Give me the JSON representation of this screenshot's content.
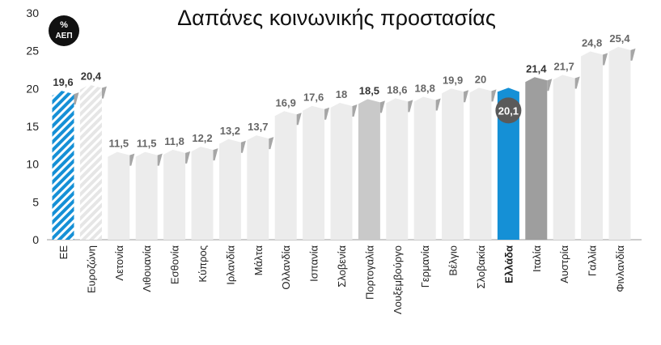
{
  "chart_data": {
    "type": "bar",
    "title": "Δαπάνες κοινωνικής προστασίας",
    "unit_badge": {
      "line1": "%",
      "line2": "ΑΕΠ"
    },
    "ylim": [
      0,
      30
    ],
    "yticks": [
      0,
      5,
      10,
      15,
      20,
      25,
      30
    ],
    "grid": false,
    "categories": [
      "ΕΕ",
      "Ευροζώνη",
      "Λετονία",
      "Λιθουανία",
      "Εσθονία",
      "Κύπρος",
      "Ιρλανδία",
      "Μάλτα",
      "Ολλανδία",
      "Ισπανία",
      "Σλοβενία",
      "Πορτογαλία",
      "Λουξεμβούργο",
      "Γερμανία",
      "Βέλγιο",
      "Σλοβακία",
      "Ελλάδα",
      "Ιταλία",
      "Αυστρία",
      "Γαλλία",
      "Φινλανδία"
    ],
    "values": [
      19.6,
      20.4,
      11.5,
      11.5,
      11.8,
      12.2,
      13.2,
      13.7,
      16.9,
      17.6,
      18,
      18.5,
      18.6,
      18.8,
      19.9,
      20,
      20.1,
      21.4,
      21.7,
      24.8,
      25.4
    ],
    "value_labels": [
      "19,6",
      "20,4",
      "11,5",
      "11,5",
      "11,8",
      "12,2",
      "13,2",
      "13,7",
      "16,9",
      "17,6",
      "18",
      "18,5",
      "18,6",
      "18,8",
      "19,9",
      "20",
      "20,1",
      "21,4",
      "21,7",
      "24,8",
      "25,4"
    ],
    "styles": [
      "hatch-blue",
      "hatch-light",
      "plain",
      "plain",
      "plain",
      "plain",
      "plain",
      "plain",
      "plain",
      "plain",
      "plain",
      "mid-gray",
      "plain",
      "plain",
      "plain",
      "plain",
      "highlight",
      "dark-gray",
      "plain",
      "plain",
      "plain"
    ],
    "colors": {
      "blue": "#1590d6",
      "plain": "#ececec",
      "mid_gray": "#c9c9c9",
      "dark_gray": "#9e9e9e",
      "badge": "#111111",
      "highlight_badge": "#5a5a5a"
    }
  }
}
